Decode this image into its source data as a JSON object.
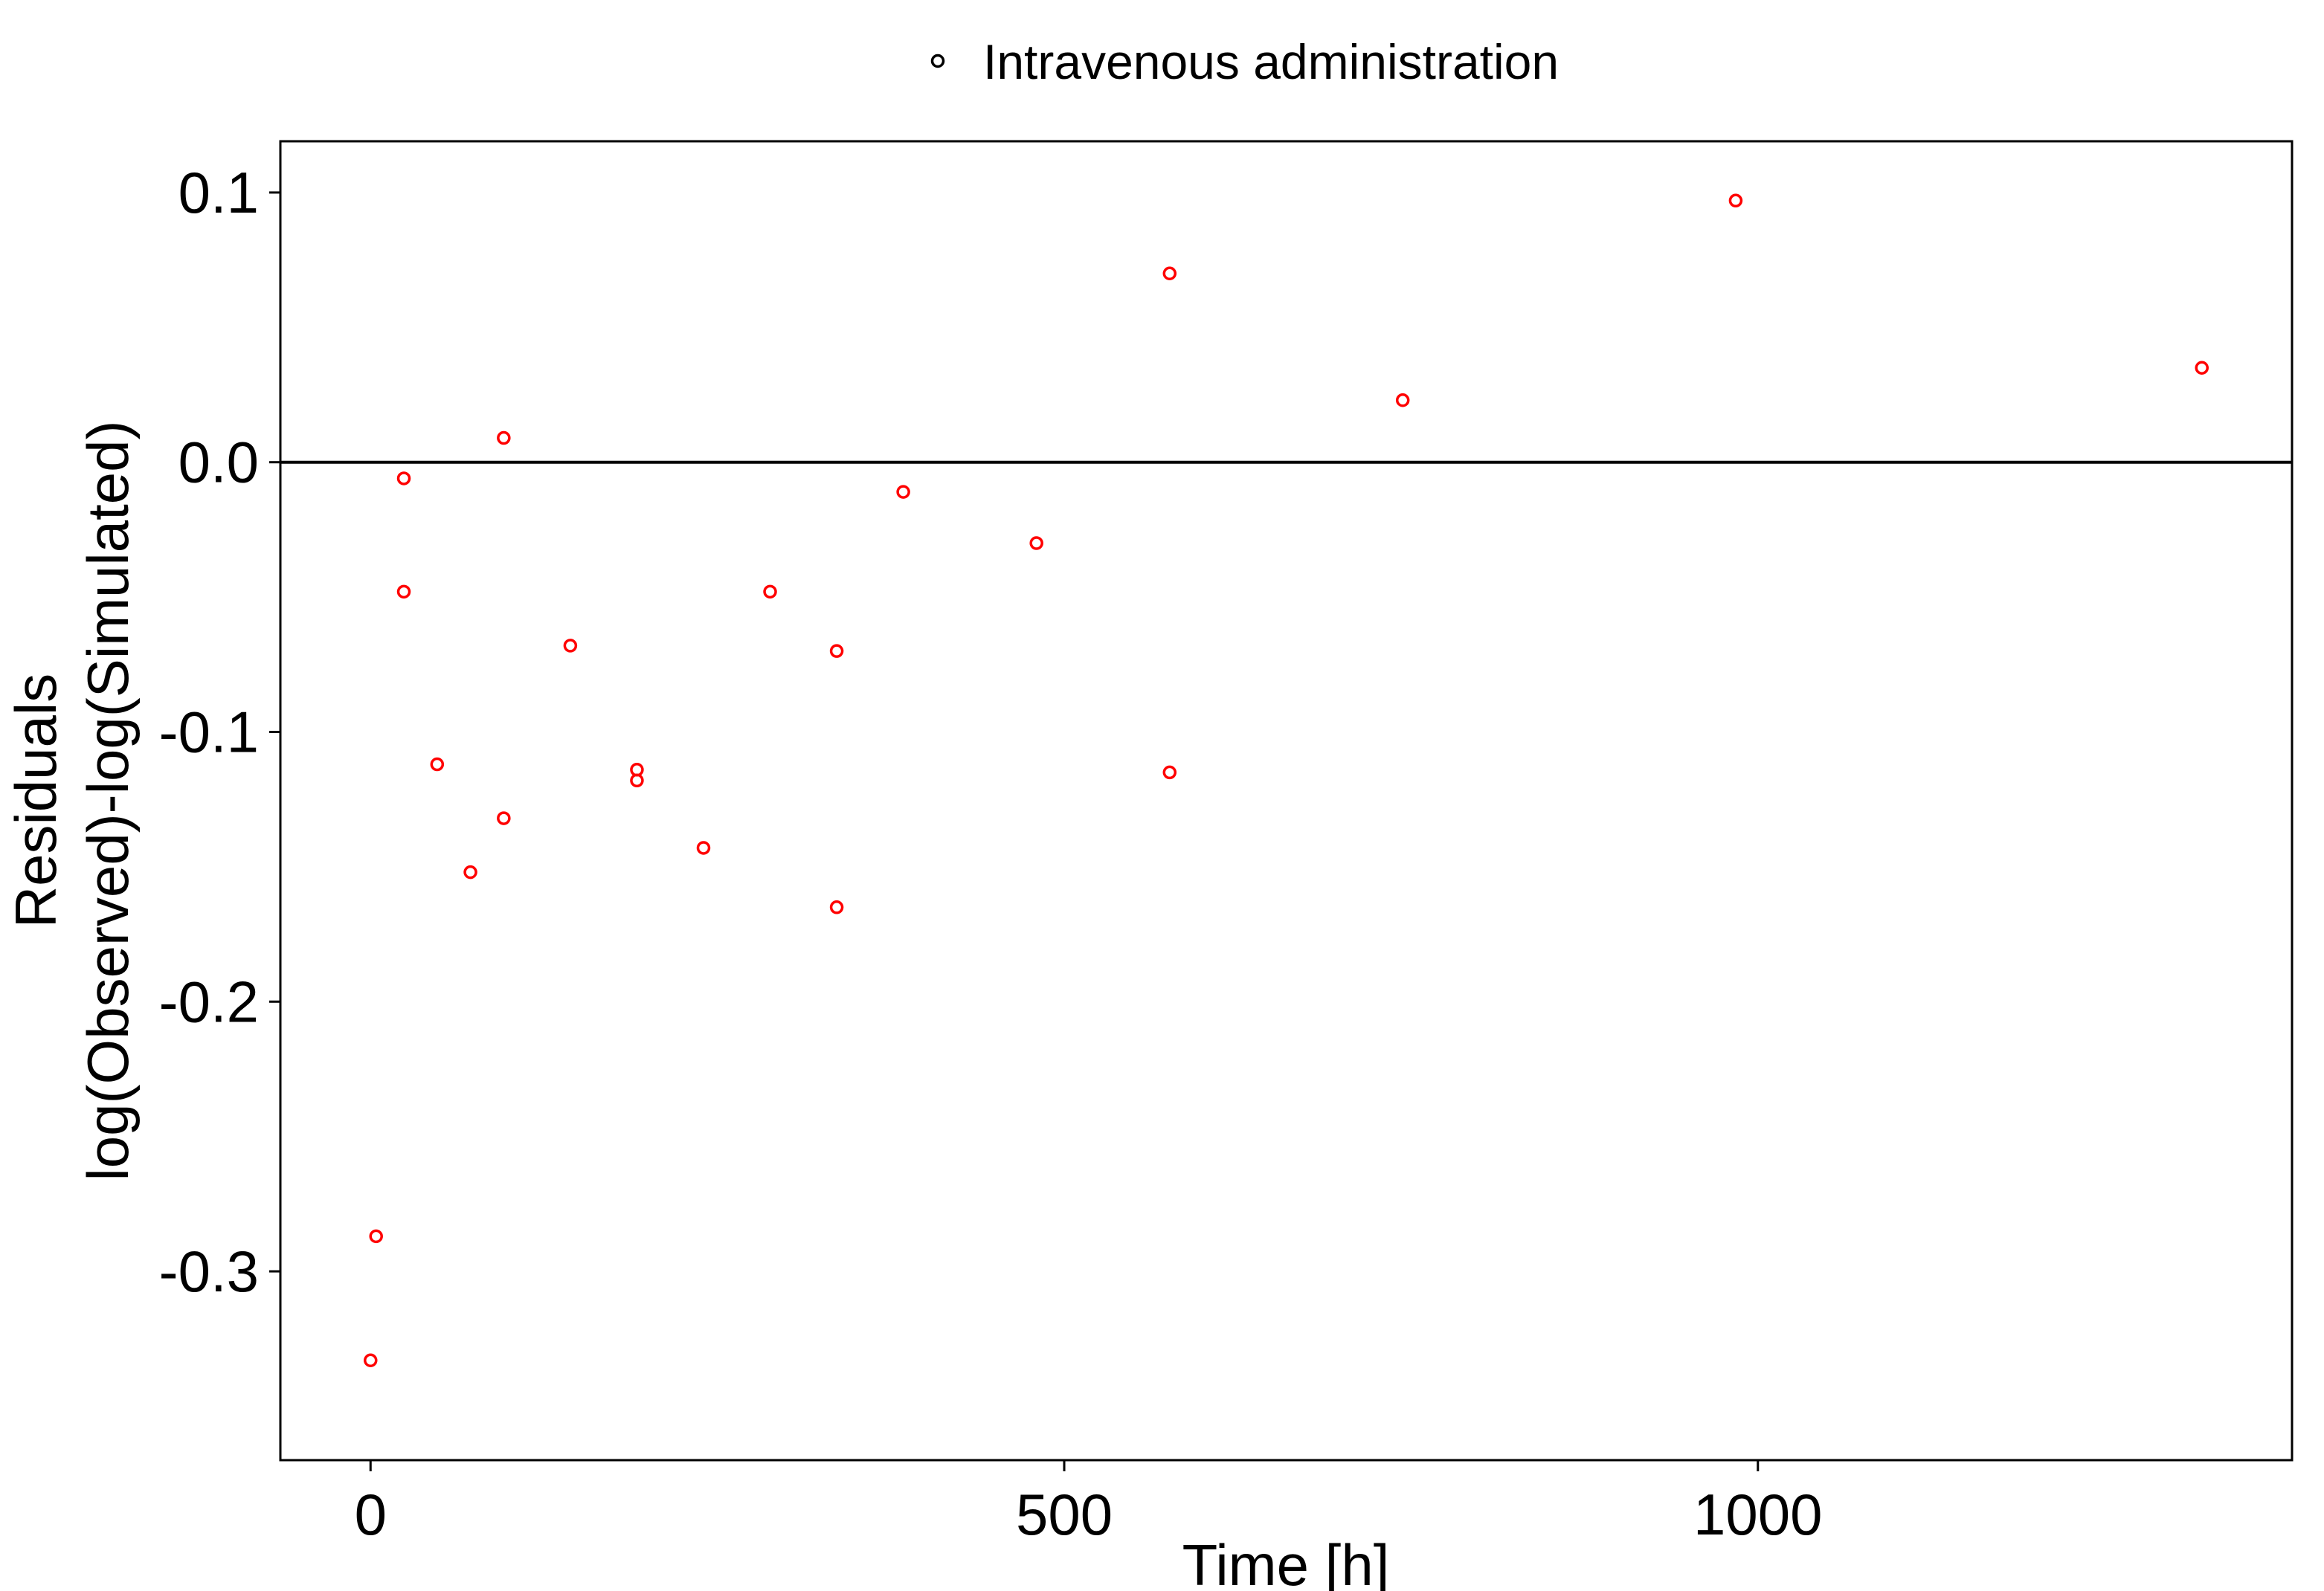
{
  "chart_data": {
    "type": "scatter",
    "title": "",
    "xlabel": "Time [h]",
    "ylabel_lines": [
      "Residuals",
      "log(Observed)-log(Simulated)"
    ],
    "xlim": [
      -65,
      1385
    ],
    "ylim": [
      -0.37,
      0.119
    ],
    "x_ticks": [
      0,
      500,
      1000
    ],
    "x_tick_labels": [
      "0",
      "500",
      "1000"
    ],
    "y_ticks": [
      0.1,
      0.0,
      -0.1,
      -0.2,
      -0.3
    ],
    "y_tick_labels": [
      "0.1",
      "0.0",
      "-0.1",
      "-0.2",
      "-0.3"
    ],
    "reference_line_y": 0,
    "grid": false,
    "legend_position": "top",
    "marker_color": "#ff0000",
    "legend_marker_color": "#000000",
    "series": [
      {
        "name": "Intravenous administration",
        "points": [
          {
            "x": 0,
            "y": -0.333
          },
          {
            "x": 4,
            "y": -0.287
          },
          {
            "x": 24,
            "y": -0.006
          },
          {
            "x": 24,
            "y": -0.048
          },
          {
            "x": 48,
            "y": -0.112
          },
          {
            "x": 72,
            "y": -0.152
          },
          {
            "x": 96,
            "y": 0.009
          },
          {
            "x": 96,
            "y": -0.132
          },
          {
            "x": 144,
            "y": -0.068
          },
          {
            "x": 192,
            "y": -0.114
          },
          {
            "x": 192,
            "y": -0.118
          },
          {
            "x": 240,
            "y": -0.143
          },
          {
            "x": 288,
            "y": -0.048
          },
          {
            "x": 336,
            "y": -0.07
          },
          {
            "x": 336,
            "y": -0.165
          },
          {
            "x": 384,
            "y": -0.011
          },
          {
            "x": 480,
            "y": -0.03
          },
          {
            "x": 576,
            "y": 0.07
          },
          {
            "x": 576,
            "y": -0.115
          },
          {
            "x": 744,
            "y": 0.023
          },
          {
            "x": 984,
            "y": 0.097
          },
          {
            "x": 1320,
            "y": 0.035
          }
        ]
      }
    ]
  }
}
